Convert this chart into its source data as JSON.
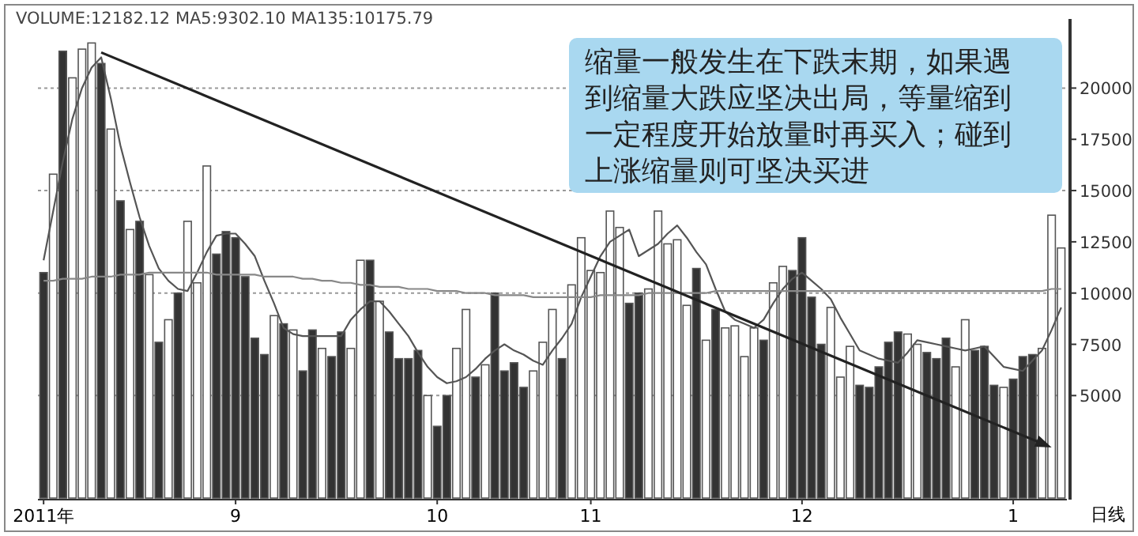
{
  "chart_data": {
    "type": "bar",
    "title": "VOLUME:12182.12  MA5:9302.10  MA135:10175.79",
    "categories": [
      "2011年",
      null,
      null,
      null,
      null,
      null,
      null,
      null,
      null,
      null,
      null,
      null,
      null,
      null,
      null,
      null,
      null,
      null,
      null,
      null,
      "9",
      null,
      null,
      null,
      null,
      null,
      null,
      null,
      null,
      null,
      null,
      null,
      null,
      null,
      null,
      null,
      null,
      null,
      null,
      null,
      null,
      "10",
      null,
      null,
      null,
      null,
      null,
      null,
      null,
      null,
      null,
      null,
      null,
      null,
      null,
      null,
      null,
      "11",
      null,
      null,
      null,
      null,
      null,
      null,
      null,
      null,
      null,
      null,
      null,
      null,
      null,
      null,
      null,
      null,
      null,
      null,
      null,
      null,
      null,
      "12",
      null,
      null,
      null,
      null,
      null,
      null,
      null,
      null,
      null,
      null,
      null,
      null,
      null,
      null,
      null,
      null,
      null,
      null,
      null,
      null,
      null,
      "1",
      null,
      null,
      null,
      null,
      null
    ],
    "values": [
      11000,
      15800,
      21800,
      20500,
      21900,
      22200,
      21200,
      18000,
      14500,
      13100,
      13500,
      10900,
      7600,
      8700,
      10000,
      13500,
      10500,
      16200,
      11900,
      13000,
      12700,
      10800,
      7800,
      7000,
      8900,
      8500,
      8200,
      6200,
      8200,
      7300,
      6900,
      8100,
      7300,
      11600,
      11600,
      9600,
      8100,
      6800,
      6800,
      7200,
      5000,
      3500,
      5000,
      7300,
      9200,
      5900,
      6500,
      10000,
      6200,
      6600,
      5400,
      6200,
      7600,
      9200,
      6800,
      10400,
      12700,
      11100,
      11000,
      14000,
      13200,
      9500,
      10000,
      10200,
      14000,
      12400,
      12600,
      9400,
      11200,
      7700,
      9200,
      8300,
      8400,
      6900,
      8300,
      7700,
      10500,
      11300,
      11100,
      12700,
      9800,
      7500,
      9300,
      5900,
      7400,
      5500,
      5400,
      6400,
      7600,
      8100,
      8000,
      7500,
      7100,
      6800,
      7800,
      6400,
      8700,
      7200,
      7400,
      5500,
      5400,
      5800,
      6900,
      7000,
      7300,
      13800,
      12200
    ],
    "colors": [
      "#333333",
      "#ffffff",
      "#333333",
      "#ffffff",
      "#ffffff",
      "#ffffff",
      "#333333",
      "#ffffff",
      "#333333",
      "#ffffff",
      "#333333",
      "#ffffff",
      "#333333",
      "#ffffff",
      "#333333",
      "#ffffff",
      "#ffffff",
      "#ffffff",
      "#333333",
      "#333333",
      "#333333",
      "#333333",
      "#333333",
      "#333333",
      "#ffffff",
      "#333333",
      "#ffffff",
      "#333333",
      "#333333",
      "#ffffff",
      "#333333",
      "#333333",
      "#ffffff",
      "#ffffff",
      "#333333",
      "#ffffff",
      "#333333",
      "#333333",
      "#333333",
      "#333333",
      "#ffffff",
      "#333333",
      "#333333",
      "#ffffff",
      "#ffffff",
      "#333333",
      "#ffffff",
      "#333333",
      "#333333",
      "#333333",
      "#333333",
      "#ffffff",
      "#ffffff",
      "#ffffff",
      "#333333",
      "#ffffff",
      "#ffffff",
      "#ffffff",
      "#ffffff",
      "#ffffff",
      "#ffffff",
      "#333333",
      "#333333",
      "#ffffff",
      "#ffffff",
      "#ffffff",
      "#ffffff",
      "#ffffff",
      "#333333",
      "#ffffff",
      "#333333",
      "#ffffff",
      "#ffffff",
      "#ffffff",
      "#ffffff",
      "#333333",
      "#ffffff",
      "#ffffff",
      "#333333",
      "#333333",
      "#333333",
      "#333333",
      "#ffffff",
      "#ffffff",
      "#ffffff",
      "#333333",
      "#333333",
      "#333333",
      "#333333",
      "#333333",
      "#ffffff",
      "#ffffff",
      "#333333",
      "#333333",
      "#333333",
      "#ffffff",
      "#ffffff",
      "#333333",
      "#333333",
      "#333333",
      "#ffffff",
      "#333333",
      "#333333",
      "#333333",
      "#ffffff",
      "#ffffff",
      "#ffffff"
    ],
    "series": [
      {
        "type": "line",
        "color": "#555555",
        "values": [
          11600,
          14000,
          16400,
          18500,
          20000,
          21000,
          21500,
          19500,
          17200,
          15400,
          13700,
          12300,
          11200,
          10600,
          10200,
          10100,
          11000,
          12000,
          12800,
          12900,
          12900,
          12400,
          11800,
          10600,
          9500,
          8300,
          8000,
          7900,
          7900,
          7900,
          7900,
          7900,
          8700,
          9200,
          9600,
          9600,
          9100,
          8500,
          7900,
          7100,
          6400,
          5900,
          5600,
          5700,
          5900,
          6300,
          6800,
          7200,
          7500,
          7200,
          7000,
          6700,
          6500,
          7200,
          7800,
          8500,
          9800,
          10800,
          11800,
          12500,
          12800,
          13100,
          11800,
          12100,
          12400,
          12900,
          13300,
          12700,
          12000,
          11400,
          10200,
          9100,
          8700,
          8500,
          8300,
          8700,
          9500,
          10200,
          10700,
          11000,
          10600,
          10200,
          9700,
          8800,
          8000,
          7200,
          7000,
          6800,
          6700,
          6600,
          7100,
          7700,
          7600,
          7500,
          7400,
          7300,
          7200,
          7300,
          7400,
          6900,
          6400,
          6300,
          6200,
          6700,
          7200,
          8200,
          9300
        ]
      },
      {
        "type": "line",
        "color": "#888888",
        "values": [
          10600,
          10600,
          10700,
          10700,
          10700,
          10800,
          10800,
          10800,
          10900,
          10900,
          10900,
          11000,
          11000,
          11000,
          11000,
          11000,
          11000,
          11000,
          10900,
          10900,
          10900,
          10900,
          10900,
          10800,
          10800,
          10800,
          10800,
          10700,
          10700,
          10600,
          10600,
          10500,
          10500,
          10400,
          10400,
          10300,
          10300,
          10300,
          10200,
          10200,
          10200,
          10100,
          10100,
          10100,
          10000,
          10000,
          10000,
          9900,
          9900,
          9900,
          9900,
          9800,
          9800,
          9800,
          9800,
          9800,
          9800,
          9800,
          9900,
          9900,
          9900,
          9900,
          9900,
          10000,
          10000,
          10000,
          10000,
          10000,
          10000,
          10000,
          10100,
          10100,
          10100,
          10100,
          10100,
          10100,
          10100,
          10100,
          10100,
          10100,
          10100,
          10100,
          10100,
          10100,
          10100,
          10100,
          10100,
          10100,
          10100,
          10100,
          10100,
          10100,
          10100,
          10100,
          10100,
          10100,
          10100,
          10100,
          10100,
          10100,
          10100,
          10100,
          10100,
          10100,
          10100,
          10200,
          10200
        ]
      }
    ],
    "ylim": [
      0,
      22600
    ],
    "yticks": [
      5000,
      7500,
      10000,
      12500,
      15000,
      17500,
      20000
    ],
    "ref_lines": [
      {
        "axis": "y",
        "value": 5000,
        "color": "#999999",
        "line_style": "dotted"
      },
      {
        "axis": "y",
        "value": 10000,
        "color": "#999999",
        "line_style": "dotted"
      },
      {
        "axis": "y",
        "value": 15000,
        "color": "#999999",
        "line_style": "dotted"
      },
      {
        "axis": "y",
        "value": 20000,
        "color": "#999999",
        "line_style": "dotted"
      }
    ],
    "annotations": [
      "缩量一般发生在下跌末期，如果遇到缩量大跌应坚决出局，等量缩到一定程度开始放量时再买入；碰到上涨缩量则可坚决买进",
      "日线"
    ]
  }
}
